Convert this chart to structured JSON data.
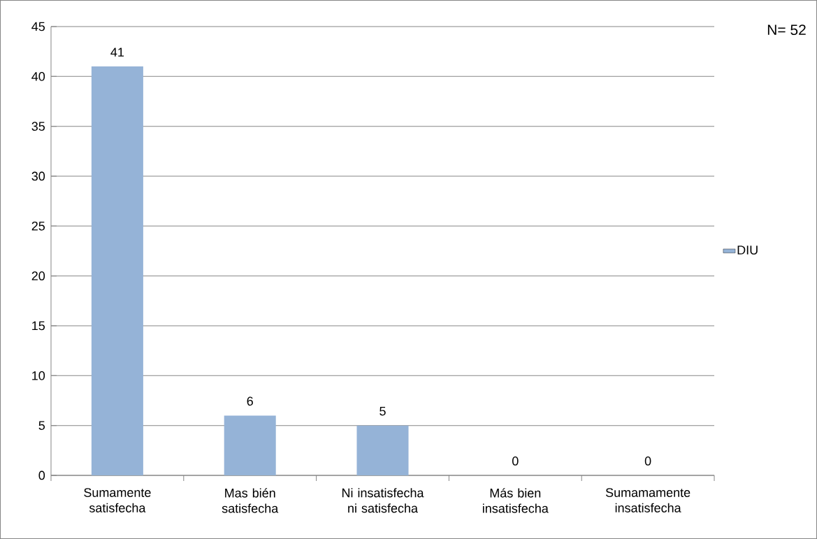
{
  "chart_data": {
    "type": "bar",
    "categories": [
      "Sumamente satisfecha",
      "Mas bién satisfecha",
      "Ni insatisfecha ni satisfecha",
      "Más bien insatisfecha",
      "Sumamamente insatisfecha"
    ],
    "series": [
      {
        "name": "DIU",
        "color": "#95b3d7",
        "values": [
          41,
          6,
          5,
          0,
          0
        ]
      }
    ],
    "ylim": [
      0,
      45
    ],
    "yticks": [
      0,
      5,
      10,
      15,
      20,
      25,
      30,
      35,
      40,
      45
    ],
    "grid": "y",
    "legend": "right",
    "data_labels": true,
    "annotations": [
      "N= 52"
    ]
  }
}
